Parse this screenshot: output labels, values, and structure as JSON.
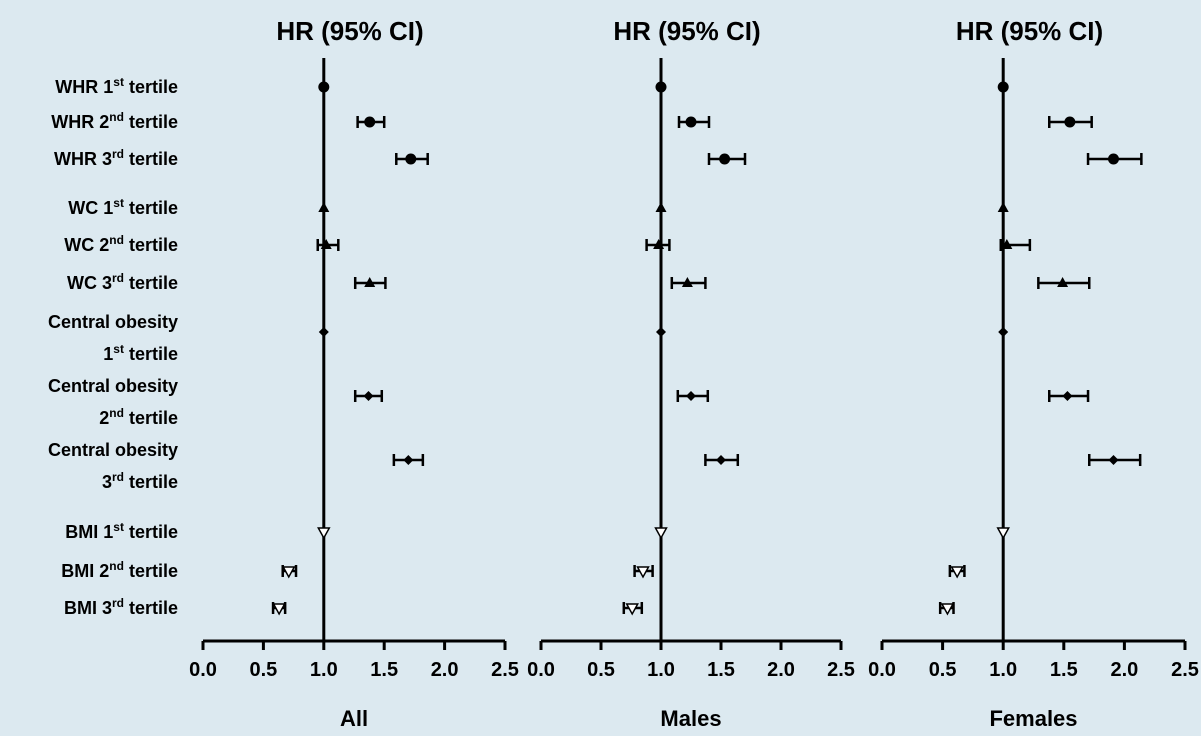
{
  "rows": [
    {
      "label": "WHR 1",
      "sup": "st",
      "tail": " tertile",
      "line2": null,
      "marker": "circle"
    },
    {
      "label": "WHR 2",
      "sup": "nd",
      "tail": " tertile",
      "line2": null,
      "marker": "circle"
    },
    {
      "label": "WHR 3",
      "sup": "rd",
      "tail": " tertile",
      "line2": null,
      "marker": "circle"
    },
    {
      "label": "WC 1",
      "sup": "st",
      "tail": " tertile",
      "line2": null,
      "marker": "triangle-up"
    },
    {
      "label": "WC 2",
      "sup": "nd",
      "tail": " tertile",
      "line2": null,
      "marker": "triangle-up"
    },
    {
      "label": "WC 3",
      "sup": "rd",
      "tail": " tertile",
      "line2": null,
      "marker": "triangle-up"
    },
    {
      "label": "Central obesity",
      "sup": null,
      "tail": null,
      "line2": {
        "num": "1",
        "sup": "st",
        "tail": " tertile"
      },
      "marker": "diamond"
    },
    {
      "label": "Central obesity",
      "sup": null,
      "tail": null,
      "line2": {
        "num": "2",
        "sup": "nd",
        "tail": " tertile"
      },
      "marker": "diamond"
    },
    {
      "label": "Central obesity",
      "sup": null,
      "tail": null,
      "line2": {
        "num": "3",
        "sup": "rd",
        "tail": " tertile"
      },
      "marker": "diamond"
    },
    {
      "label": "BMI 1",
      "sup": "st",
      "tail": " tertile",
      "line2": null,
      "marker": "triangle-down"
    },
    {
      "label": "BMI 2",
      "sup": "nd",
      "tail": " tertile",
      "line2": null,
      "marker": "triangle-down"
    },
    {
      "label": "BMI 3",
      "sup": "rd",
      "tail": " tertile",
      "line2": null,
      "marker": "triangle-down"
    }
  ],
  "chart_data": [
    {
      "type": "scatter",
      "title": "HR (95% CI)",
      "xlabel": "All",
      "xlim": [
        0.0,
        2.5
      ],
      "xticks": [
        "0.0",
        "0.5",
        "1.0",
        "1.5",
        "2.0",
        "2.5"
      ],
      "reference_line": 1.0,
      "points": [
        {
          "hr": 1.0,
          "lo": 1.0,
          "hi": 1.0
        },
        {
          "hr": 1.38,
          "lo": 1.28,
          "hi": 1.5
        },
        {
          "hr": 1.72,
          "lo": 1.6,
          "hi": 1.86
        },
        {
          "hr": 1.0,
          "lo": 1.0,
          "hi": 1.0
        },
        {
          "hr": 1.02,
          "lo": 0.95,
          "hi": 1.12
        },
        {
          "hr": 1.38,
          "lo": 1.26,
          "hi": 1.51
        },
        {
          "hr": 1.0,
          "lo": 1.0,
          "hi": 1.0
        },
        {
          "hr": 1.37,
          "lo": 1.26,
          "hi": 1.48
        },
        {
          "hr": 1.7,
          "lo": 1.58,
          "hi": 1.82
        },
        {
          "hr": 1.0,
          "lo": 1.0,
          "hi": 1.0
        },
        {
          "hr": 0.71,
          "lo": 0.66,
          "hi": 0.77
        },
        {
          "hr": 0.63,
          "lo": 0.58,
          "hi": 0.68
        }
      ]
    },
    {
      "type": "scatter",
      "title": "HR (95% CI)",
      "xlabel": "Males",
      "xlim": [
        0.0,
        2.5
      ],
      "xticks": [
        "0.0",
        "0.5",
        "1.0",
        "1.5",
        "2.0",
        "2.5"
      ],
      "reference_line": 1.0,
      "points": [
        {
          "hr": 1.0,
          "lo": 1.0,
          "hi": 1.0
        },
        {
          "hr": 1.25,
          "lo": 1.15,
          "hi": 1.4
        },
        {
          "hr": 1.53,
          "lo": 1.4,
          "hi": 1.7
        },
        {
          "hr": 1.0,
          "lo": 1.0,
          "hi": 1.0
        },
        {
          "hr": 0.98,
          "lo": 0.88,
          "hi": 1.07
        },
        {
          "hr": 1.22,
          "lo": 1.09,
          "hi": 1.37
        },
        {
          "hr": 1.0,
          "lo": 1.0,
          "hi": 1.0
        },
        {
          "hr": 1.25,
          "lo": 1.14,
          "hi": 1.39
        },
        {
          "hr": 1.5,
          "lo": 1.37,
          "hi": 1.64
        },
        {
          "hr": 1.0,
          "lo": 1.0,
          "hi": 1.0
        },
        {
          "hr": 0.85,
          "lo": 0.78,
          "hi": 0.93
        },
        {
          "hr": 0.76,
          "lo": 0.69,
          "hi": 0.84
        }
      ]
    },
    {
      "type": "scatter",
      "title": "HR (95% CI)",
      "xlabel": "Females",
      "xlim": [
        0.0,
        2.5
      ],
      "xticks": [
        "0.0",
        "0.5",
        "1.0",
        "1.5",
        "2.0",
        "2.5"
      ],
      "reference_line": 1.0,
      "points": [
        {
          "hr": 1.0,
          "lo": 1.0,
          "hi": 1.0
        },
        {
          "hr": 1.55,
          "lo": 1.38,
          "hi": 1.73
        },
        {
          "hr": 1.91,
          "lo": 1.7,
          "hi": 2.14
        },
        {
          "hr": 1.0,
          "lo": 1.0,
          "hi": 1.0
        },
        {
          "hr": 1.03,
          "lo": 0.98,
          "hi": 1.22
        },
        {
          "hr": 1.49,
          "lo": 1.29,
          "hi": 1.71
        },
        {
          "hr": 1.0,
          "lo": 1.0,
          "hi": 1.0
        },
        {
          "hr": 1.53,
          "lo": 1.38,
          "hi": 1.7
        },
        {
          "hr": 1.91,
          "lo": 1.71,
          "hi": 2.13
        },
        {
          "hr": 1.0,
          "lo": 1.0,
          "hi": 1.0
        },
        {
          "hr": 0.62,
          "lo": 0.56,
          "hi": 0.68
        },
        {
          "hr": 0.54,
          "lo": 0.48,
          "hi": 0.59
        }
      ]
    }
  ]
}
